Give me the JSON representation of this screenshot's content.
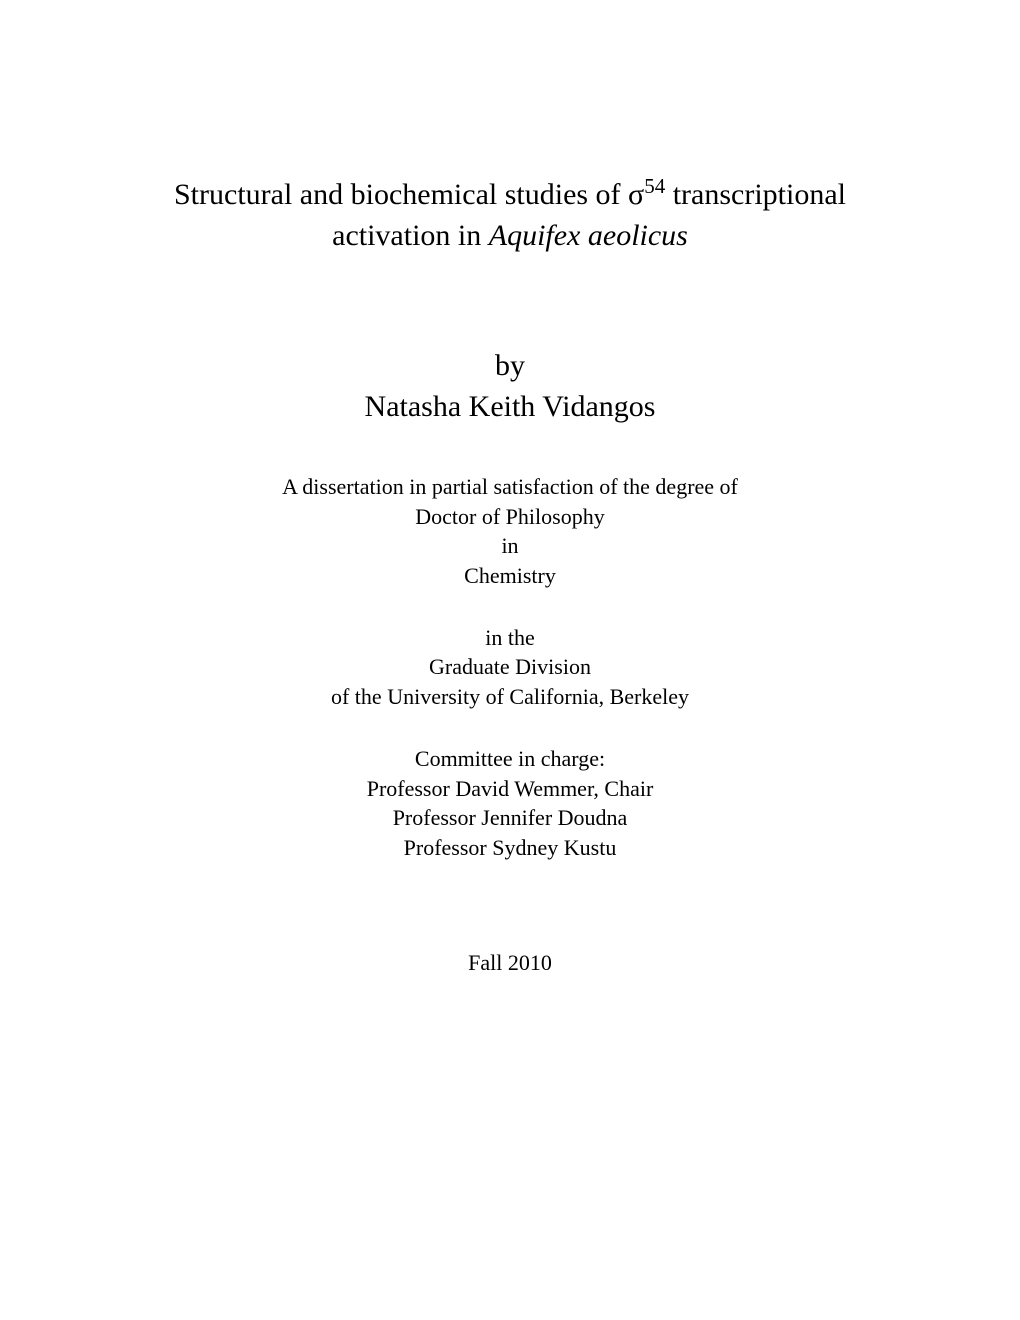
{
  "title": {
    "prefix": "Structural and biochemical studies of σ",
    "superscript": "54",
    "middle": " transcriptional",
    "line2_prefix": "activation in ",
    "line2_italic": "Aquifex aeolicus"
  },
  "byline": {
    "by": "by",
    "author": "Natasha Keith Vidangos"
  },
  "dissertation": {
    "line1": "A dissertation in partial satisfaction of the degree of",
    "line2": "Doctor of Philosophy",
    "line3": "in",
    "line4": "Chemistry"
  },
  "division": {
    "line1": "in the",
    "line2": "Graduate Division",
    "line3": "of the University of California, Berkeley"
  },
  "committee": {
    "heading": "Committee in charge:",
    "chair": "Professor David Wemmer, Chair",
    "member1": "Professor Jennifer Doudna",
    "member2": "Professor Sydney Kustu"
  },
  "date": "Fall 2010",
  "colors": {
    "background": "#ffffff",
    "text": "#000000"
  },
  "typography": {
    "font_family": "Times New Roman",
    "title_fontsize": 30,
    "body_fontsize": 22
  }
}
